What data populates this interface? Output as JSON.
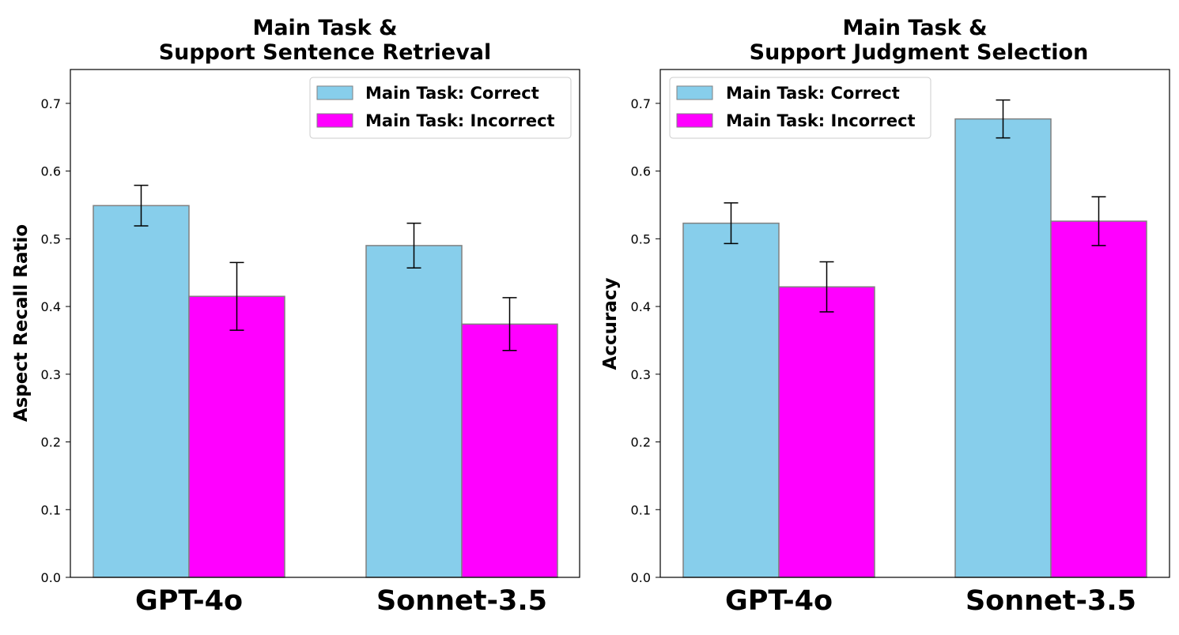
{
  "colors": {
    "correct": "#87CEEB",
    "incorrect": "#FF00FF",
    "bar_edge": "#808080",
    "error_bar": "#000000"
  },
  "chart_data": [
    {
      "type": "bar",
      "title_line1": "Main Task &",
      "title_line2": "Support Sentence Retrieval",
      "xlabel": "",
      "ylabel": "Aspect Recall Ratio",
      "ylim": [
        0,
        0.75
      ],
      "yticks": [
        "0.0",
        "0.1",
        "0.2",
        "0.3",
        "0.4",
        "0.5",
        "0.6",
        "0.7"
      ],
      "categories": [
        "GPT-4o",
        "Sonnet-3.5"
      ],
      "legend_position": "top-right",
      "series": [
        {
          "name": "Main Task: Correct",
          "values": [
            0.549,
            0.49
          ],
          "errors": [
            0.03,
            0.033
          ]
        },
        {
          "name": "Main Task: Incorrect",
          "values": [
            0.415,
            0.374
          ],
          "errors": [
            0.05,
            0.039
          ]
        }
      ]
    },
    {
      "type": "bar",
      "title_line1": "Main Task &",
      "title_line2": "Support Judgment Selection",
      "xlabel": "",
      "ylabel": "Accuracy",
      "ylim": [
        0,
        0.75
      ],
      "yticks": [
        "0.0",
        "0.1",
        "0.2",
        "0.3",
        "0.4",
        "0.5",
        "0.6",
        "0.7"
      ],
      "categories": [
        "GPT-4o",
        "Sonnet-3.5"
      ],
      "legend_position": "top-left",
      "series": [
        {
          "name": "Main Task: Correct",
          "values": [
            0.523,
            0.677
          ],
          "errors": [
            0.03,
            0.028
          ]
        },
        {
          "name": "Main Task: Incorrect",
          "values": [
            0.429,
            0.526
          ],
          "errors": [
            0.037,
            0.036
          ]
        }
      ]
    }
  ]
}
